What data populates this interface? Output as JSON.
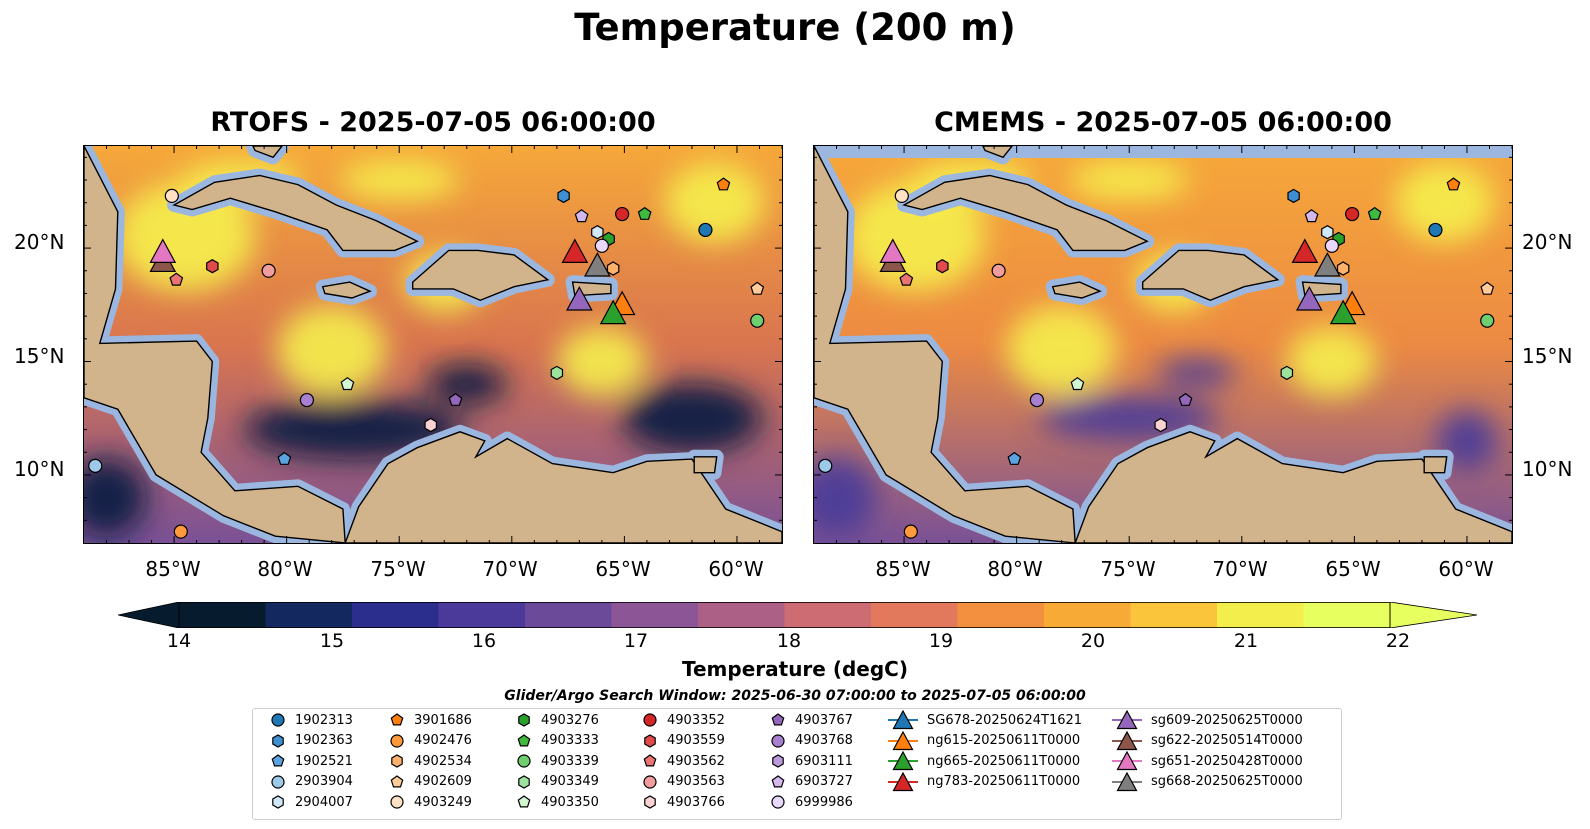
{
  "title": "Temperature (200 m)",
  "panels": [
    {
      "id": "rtofs",
      "title": "RTOFS - 2025-07-05 06:00:00"
    },
    {
      "id": "cmems",
      "title": "CMEMS - 2025-07-05 06:00:00"
    }
  ],
  "axes": {
    "lat_ticks": [
      "20°N",
      "15°N",
      "10°N"
    ],
    "lon_ticks": [
      "85°W",
      "80°W",
      "75°W",
      "70°W",
      "65°W",
      "60°W"
    ]
  },
  "colorbar": {
    "label": "Temperature (degC)",
    "ticks": [
      "14",
      "15",
      "16",
      "17",
      "18",
      "19",
      "20",
      "21",
      "22"
    ],
    "range": [
      14,
      22
    ],
    "colormap": [
      "#061b2e",
      "#13285f",
      "#2b2e8c",
      "#4b3a9a",
      "#6b4a9a",
      "#8c5696",
      "#ac6085",
      "#cd6c73",
      "#e3795c",
      "#f2903f",
      "#f8aa36",
      "#fbc53b",
      "#f4ee4c",
      "#e8ff60"
    ]
  },
  "map_colors": {
    "land": "#d2b48c",
    "shelf": "#9bb7e0",
    "coast": "#000000"
  },
  "legend": {
    "title": "Glider/Argo Search Window: 2025-06-30 07:00:00 to 2025-07-05 06:00:00",
    "columns": [
      [
        {
          "label": "1902313",
          "marker": "circle",
          "color": "#1f77b4"
        },
        {
          "label": "1902363",
          "marker": "hexagon",
          "color": "#3d8fd1"
        },
        {
          "label": "1902521",
          "marker": "pentagon",
          "color": "#5aa3e0"
        },
        {
          "label": "2903904",
          "marker": "circle",
          "color": "#9ecae9"
        },
        {
          "label": "2904007",
          "marker": "hexagon",
          "color": "#d0e8f8"
        }
      ],
      [
        {
          "label": "3901686",
          "marker": "pentagon",
          "color": "#ff7f0e"
        },
        {
          "label": "4902476",
          "marker": "circle",
          "color": "#ff9a3c"
        },
        {
          "label": "4902534",
          "marker": "hexagon",
          "color": "#ffb26b"
        },
        {
          "label": "4902609",
          "marker": "pentagon",
          "color": "#ffcb99"
        },
        {
          "label": "4903249",
          "marker": "circle",
          "color": "#ffe2c4"
        }
      ],
      [
        {
          "label": "4903276",
          "marker": "hexagon",
          "color": "#2ca02c"
        },
        {
          "label": "4903333",
          "marker": "pentagon",
          "color": "#3fba3f"
        },
        {
          "label": "4903339",
          "marker": "circle",
          "color": "#6fcf6f"
        },
        {
          "label": "4903349",
          "marker": "hexagon",
          "color": "#9de39d"
        },
        {
          "label": "4903350",
          "marker": "pentagon",
          "color": "#d2f5d2"
        }
      ],
      [
        {
          "label": "4903352",
          "marker": "circle",
          "color": "#d62728"
        },
        {
          "label": "4903559",
          "marker": "hexagon",
          "color": "#e04a4b"
        },
        {
          "label": "4903562",
          "marker": "pentagon",
          "color": "#ea7374"
        },
        {
          "label": "4903563",
          "marker": "circle",
          "color": "#f29d9d"
        },
        {
          "label": "4903766",
          "marker": "hexagon",
          "color": "#fbd2d2"
        }
      ],
      [
        {
          "label": "4903767",
          "marker": "pentagon",
          "color": "#9467bd"
        },
        {
          "label": "4903768",
          "marker": "circle",
          "color": "#a880cf"
        },
        {
          "label": "6903111",
          "marker": "hexagon",
          "color": "#bd9ade"
        },
        {
          "label": "6903727",
          "marker": "pentagon",
          "color": "#d3b8ed"
        },
        {
          "label": "6999986",
          "marker": "circle",
          "color": "#e9d8fb"
        }
      ],
      [
        {
          "label": "SG678-20250624T1621",
          "marker": "triangle",
          "color": "#1f77b4"
        },
        {
          "label": "ng615-20250611T0000",
          "marker": "triangle",
          "color": "#ff7f0e"
        },
        {
          "label": "ng665-20250611T0000",
          "marker": "triangle",
          "color": "#2ca02c"
        },
        {
          "label": "ng783-20250611T0000",
          "marker": "triangle",
          "color": "#d62728"
        }
      ],
      [
        {
          "label": "sg609-20250625T0000",
          "marker": "triangle",
          "color": "#9467bd"
        },
        {
          "label": "sg622-20250514T0000",
          "marker": "triangle",
          "color": "#8c564b"
        },
        {
          "label": "sg651-20250428T0000",
          "marker": "triangle",
          "color": "#e377c2"
        },
        {
          "label": "sg668-20250625T0000",
          "marker": "triangle",
          "color": "#7f7f7f"
        }
      ]
    ]
  },
  "map_extent": {
    "lon": [
      -89,
      -58
    ],
    "lat": [
      7,
      24.5
    ]
  },
  "floats": [
    {
      "id": "2903904",
      "lon": -88.5,
      "lat": 10.4
    },
    {
      "id": "4902476",
      "lon": -84.7,
      "lat": 7.5
    },
    {
      "id": "4903249",
      "lon": -85.1,
      "lat": 22.3
    },
    {
      "id": "4903559",
      "lon": -83.3,
      "lat": 19.2
    },
    {
      "id": "4903562",
      "lon": -84.9,
      "lat": 18.6
    },
    {
      "id": "4903563",
      "lon": -80.8,
      "lat": 19.0
    },
    {
      "id": "4903768",
      "lon": -79.1,
      "lat": 13.3
    },
    {
      "id": "4903350",
      "lon": -77.3,
      "lat": 14.0
    },
    {
      "id": "1902521",
      "lon": -80.1,
      "lat": 10.7
    },
    {
      "id": "4903766",
      "lon": -73.6,
      "lat": 12.2
    },
    {
      "id": "4903767",
      "lon": -72.5,
      "lat": 13.3
    },
    {
      "id": "1902363",
      "lon": -67.7,
      "lat": 22.3
    },
    {
      "id": "6903727",
      "lon": -66.9,
      "lat": 21.4
    },
    {
      "id": "4903352",
      "lon": -65.1,
      "lat": 21.5
    },
    {
      "id": "4903333",
      "lon": -64.1,
      "lat": 21.5
    },
    {
      "id": "2904007",
      "lon": -66.2,
      "lat": 20.7
    },
    {
      "id": "4903276",
      "lon": -65.7,
      "lat": 20.4
    },
    {
      "id": "6999986",
      "lon": -66.0,
      "lat": 20.1
    },
    {
      "id": "4902534",
      "lon": -65.5,
      "lat": 19.1
    },
    {
      "id": "1902313",
      "lon": -61.4,
      "lat": 20.8
    },
    {
      "id": "3901686",
      "lon": -60.6,
      "lat": 22.8
    },
    {
      "id": "4902609",
      "lon": -59.1,
      "lat": 18.2
    },
    {
      "id": "4903339",
      "lon": -59.1,
      "lat": 16.8
    },
    {
      "id": "4903349",
      "lon": -68.0,
      "lat": 14.5
    }
  ],
  "gliders": [
    {
      "id": "sg622-20250514T0000",
      "lon": -85.5,
      "lat": 19.4
    },
    {
      "id": "sg651-20250428T0000",
      "lon": -85.5,
      "lat": 19.8
    },
    {
      "id": "ng783-20250611T0000",
      "lon": -67.2,
      "lat": 19.8
    },
    {
      "id": "sg668-20250625T0000",
      "lon": -66.2,
      "lat": 19.2
    },
    {
      "id": "ng615-20250611T0000",
      "lon": -65.1,
      "lat": 17.5
    },
    {
      "id": "sg609-20250625T0000",
      "lon": -67.0,
      "lat": 17.7
    },
    {
      "id": "ng665-20250611T0000",
      "lon": -65.5,
      "lat": 17.1
    }
  ]
}
